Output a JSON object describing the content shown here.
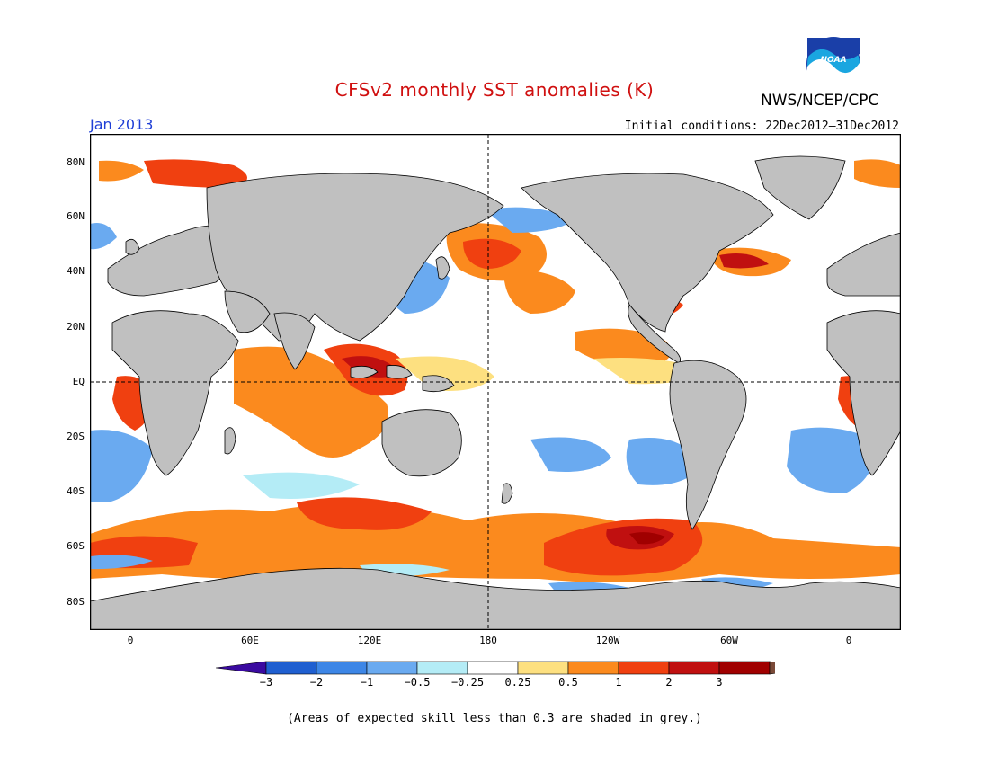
{
  "title": "CFSv2 monthly SST anomalies (K)",
  "agency": "NWS/NCEP/CPC",
  "logo_text": "NOAA",
  "month": "Jan 2013",
  "initial_conditions": "Initial conditions: 22Dec2012–31Dec2012",
  "footnote": "(Areas of expected skill less than 0.3 are shaded in grey.)",
  "lat_labels": [
    "80N",
    "60N",
    "40N",
    "20N",
    "EQ",
    "20S",
    "40S",
    "60S",
    "80S"
  ],
  "lon_labels": [
    "0",
    "60E",
    "120E",
    "180",
    "120W",
    "60W",
    "0"
  ],
  "colorbar": {
    "labels": [
      "−3",
      "−2",
      "−1",
      "−0.5",
      "−0.25",
      "0.25",
      "0.5",
      "1",
      "2",
      "3"
    ],
    "colors": [
      "#3a0aa0",
      "#1f5fd0",
      "#3d86e6",
      "#6aaaf0",
      "#b4ecf6",
      "#ffffff",
      "#fde080",
      "#fb8a1e",
      "#f04010",
      "#c01010",
      "#a00000",
      "#7a4a38"
    ]
  },
  "colors": {
    "title": "#d01010",
    "month": "#1f3fd6",
    "land": "#c0c0c0",
    "ocean_neutral": "#ffffff"
  }
}
